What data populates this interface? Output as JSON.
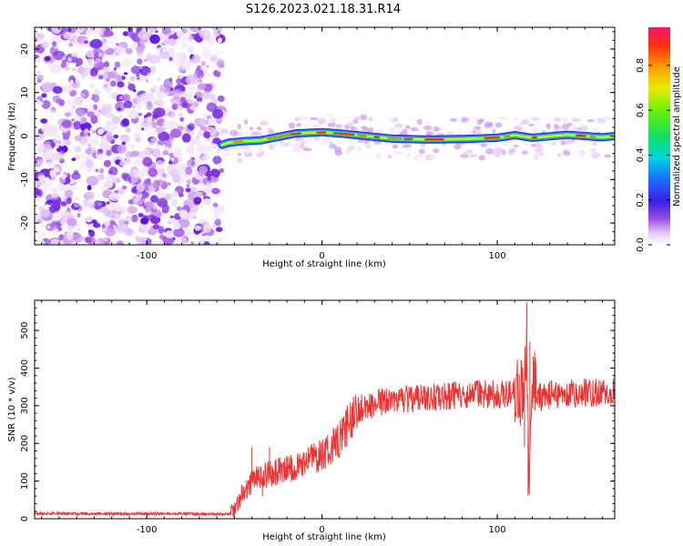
{
  "title": "S126.2023.021.18.31.R14",
  "colors": {
    "snr_line": "#ee3333",
    "axis": "#000000",
    "background": "#ffffff"
  },
  "chart_data": [
    {
      "type": "heatmap",
      "xlabel": "Height of straight line (km)",
      "ylabel": "Frequency (Hz)",
      "xlim": [
        -164,
        167
      ],
      "ylim": [
        -25,
        25
      ],
      "x_ticks": [
        -100,
        0,
        100
      ],
      "y_ticks": [
        -20,
        -10,
        0,
        10,
        20
      ],
      "grid": false,
      "noise_region_x": [
        -164,
        -57
      ],
      "signal_ridge": {
        "x": [
          -57,
          -53,
          -45,
          -35,
          -25,
          -15,
          -5,
          0,
          10,
          20,
          40,
          60,
          80,
          100,
          110,
          120,
          140,
          160,
          167
        ],
        "freq": [
          -2.0,
          -1.5,
          -1.2,
          -1.0,
          -0.2,
          0.6,
          0.8,
          0.9,
          0.6,
          0.2,
          -0.6,
          -0.8,
          -0.7,
          -0.4,
          0.2,
          -0.4,
          0.3,
          -0.3,
          0.0
        ]
      },
      "colorbar": {
        "label": "Normalized spectral amplitude",
        "range": [
          0,
          0.97
        ],
        "ticks": [
          "0.0",
          "0.2",
          "0.4",
          "0.6",
          "0.8"
        ]
      }
    },
    {
      "type": "line",
      "xlabel": "Height of straight line (km)",
      "ylabel": "SNR (10 * v/v)",
      "xlim": [
        -164,
        167
      ],
      "ylim": [
        0,
        580
      ],
      "x_ticks": [
        -100,
        0,
        100
      ],
      "y_ticks": [
        0,
        100,
        200,
        300,
        400,
        500
      ],
      "grid": false,
      "series": [
        {
          "x": [
            -164,
            -140,
            -120,
            -100,
            -80,
            -60,
            -52,
            -48,
            -45,
            -40,
            -35,
            -30,
            -25,
            -20,
            -10,
            0,
            10,
            15,
            20,
            30,
            40,
            50,
            60,
            70,
            80,
            90,
            100,
            110,
            115,
            117,
            118,
            120,
            125,
            130,
            140,
            150,
            160,
            167
          ],
          "values": [
            14,
            13,
            13,
            13,
            13,
            12,
            13,
            40,
            70,
            100,
            110,
            120,
            125,
            130,
            150,
            170,
            210,
            250,
            290,
            305,
            315,
            320,
            322,
            325,
            330,
            330,
            330,
            335,
            340,
            460,
            90,
            360,
            320,
            330,
            330,
            335,
            335,
            335
          ]
        }
      ]
    }
  ]
}
